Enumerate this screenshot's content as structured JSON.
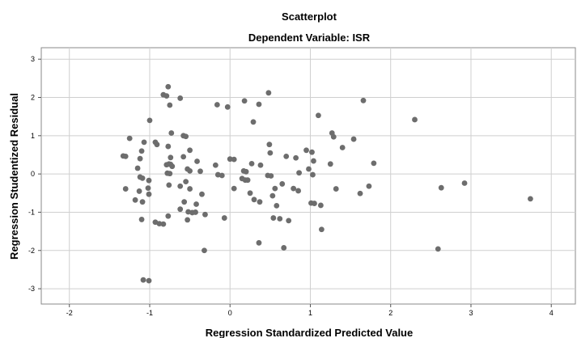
{
  "chart_data": {
    "type": "scatter",
    "title": "Scatterplot",
    "subtitle": "Dependent Variable: ISR",
    "xlabel": "Regression Standardized Predicted Value",
    "ylabel": "Regression Studentized Residual",
    "xlim": [
      -2.35,
      4.3
    ],
    "ylim": [
      -3.4,
      3.3
    ],
    "xticks": [
      -2,
      -1,
      0,
      1,
      2,
      3,
      4
    ],
    "yticks": [
      -3,
      -2,
      -1,
      0,
      1,
      2,
      3
    ],
    "xtick_labels": [
      "-2",
      "-1",
      "0",
      "1",
      "2",
      "3",
      "4"
    ],
    "ytick_labels": [
      "-3",
      "-2",
      "-1",
      "0",
      "1",
      "2",
      "3"
    ],
    "grid": true,
    "point_color": "#6d6d6d",
    "points": [
      {
        "x": -1.33,
        "y": 0.47
      },
      {
        "x": -1.3,
        "y": 0.46
      },
      {
        "x": -1.25,
        "y": 0.93
      },
      {
        "x": -1.3,
        "y": -0.39
      },
      {
        "x": -1.18,
        "y": -0.68
      },
      {
        "x": -1.15,
        "y": 0.15
      },
      {
        "x": -1.12,
        "y": -0.08
      },
      {
        "x": -1.09,
        "y": -0.11
      },
      {
        "x": -1.13,
        "y": -0.45
      },
      {
        "x": -1.12,
        "y": 0.4
      },
      {
        "x": -1.1,
        "y": 0.6
      },
      {
        "x": -1.07,
        "y": 0.83
      },
      {
        "x": -1.09,
        "y": -0.73
      },
      {
        "x": -1.1,
        "y": -1.19
      },
      {
        "x": -1.02,
        "y": -0.37
      },
      {
        "x": -1.01,
        "y": -0.17
      },
      {
        "x": -1.01,
        "y": -0.53
      },
      {
        "x": -1.0,
        "y": 1.4
      },
      {
        "x": -1.08,
        "y": -2.77
      },
      {
        "x": -1.01,
        "y": -2.79
      },
      {
        "x": -0.93,
        "y": 0.83
      },
      {
        "x": -0.91,
        "y": 0.77
      },
      {
        "x": -0.93,
        "y": -1.26
      },
      {
        "x": -0.88,
        "y": -1.3
      },
      {
        "x": -0.83,
        "y": -1.31
      },
      {
        "x": -0.83,
        "y": 2.07
      },
      {
        "x": -0.79,
        "y": 2.04
      },
      {
        "x": -0.77,
        "y": 2.28
      },
      {
        "x": -0.75,
        "y": 1.8
      },
      {
        "x": -0.73,
        "y": 1.07
      },
      {
        "x": -0.77,
        "y": 0.72
      },
      {
        "x": -0.74,
        "y": 0.43
      },
      {
        "x": -0.79,
        "y": 0.24
      },
      {
        "x": -0.76,
        "y": 0.26
      },
      {
        "x": -0.74,
        "y": 0.25
      },
      {
        "x": -0.72,
        "y": 0.2
      },
      {
        "x": -0.78,
        "y": 0.02
      },
      {
        "x": -0.75,
        "y": 0.01
      },
      {
        "x": -0.76,
        "y": -0.29
      },
      {
        "x": -0.77,
        "y": -1.1
      },
      {
        "x": -0.62,
        "y": 1.98
      },
      {
        "x": -0.58,
        "y": 1.0
      },
      {
        "x": -0.55,
        "y": 0.98
      },
      {
        "x": -0.58,
        "y": 0.45
      },
      {
        "x": -0.53,
        "y": 0.13
      },
      {
        "x": -0.5,
        "y": 0.08
      },
      {
        "x": -0.5,
        "y": 0.62
      },
      {
        "x": -0.55,
        "y": -0.2
      },
      {
        "x": -0.62,
        "y": -0.32
      },
      {
        "x": -0.5,
        "y": -0.39
      },
      {
        "x": -0.57,
        "y": -0.73
      },
      {
        "x": -0.62,
        "y": -0.92
      },
      {
        "x": -0.52,
        "y": -0.99
      },
      {
        "x": -0.47,
        "y": -1.01
      },
      {
        "x": -0.43,
        "y": -1.0
      },
      {
        "x": -0.53,
        "y": -1.2
      },
      {
        "x": -0.41,
        "y": 0.33
      },
      {
        "x": -0.37,
        "y": 0.07
      },
      {
        "x": -0.42,
        "y": -0.79
      },
      {
        "x": -0.35,
        "y": -0.53
      },
      {
        "x": -0.31,
        "y": -1.06
      },
      {
        "x": -0.32,
        "y": -2.0
      },
      {
        "x": -0.16,
        "y": 1.81
      },
      {
        "x": -0.18,
        "y": 0.23
      },
      {
        "x": -0.15,
        "y": -0.02
      },
      {
        "x": -0.1,
        "y": -0.04
      },
      {
        "x": -0.07,
        "y": -1.15
      },
      {
        "x": -0.03,
        "y": 1.75
      },
      {
        "x": 0.0,
        "y": 0.39
      },
      {
        "x": 0.05,
        "y": 0.38
      },
      {
        "x": 0.05,
        "y": -0.38
      },
      {
        "x": 0.15,
        "y": -0.12
      },
      {
        "x": 0.17,
        "y": 0.08
      },
      {
        "x": 0.18,
        "y": 1.91
      },
      {
        "x": 0.19,
        "y": -0.16
      },
      {
        "x": 0.2,
        "y": 0.06
      },
      {
        "x": 0.22,
        "y": -0.16
      },
      {
        "x": 0.25,
        "y": -0.5
      },
      {
        "x": 0.27,
        "y": 0.27
      },
      {
        "x": 0.29,
        "y": 1.36
      },
      {
        "x": 0.3,
        "y": -0.67
      },
      {
        "x": 0.36,
        "y": 1.82
      },
      {
        "x": 0.37,
        "y": -0.73
      },
      {
        "x": 0.38,
        "y": 0.23
      },
      {
        "x": 0.36,
        "y": -1.8
      },
      {
        "x": 0.48,
        "y": 2.12
      },
      {
        "x": 0.47,
        "y": -0.04
      },
      {
        "x": 0.49,
        "y": 0.77
      },
      {
        "x": 0.5,
        "y": 0.55
      },
      {
        "x": 0.51,
        "y": -0.05
      },
      {
        "x": 0.53,
        "y": -0.57
      },
      {
        "x": 0.54,
        "y": -1.15
      },
      {
        "x": 0.56,
        "y": -0.38
      },
      {
        "x": 0.58,
        "y": -0.83
      },
      {
        "x": 0.62,
        "y": -1.17
      },
      {
        "x": 0.65,
        "y": -0.26
      },
      {
        "x": 0.67,
        "y": -1.93
      },
      {
        "x": 0.7,
        "y": 0.46
      },
      {
        "x": 0.73,
        "y": -1.22
      },
      {
        "x": 0.79,
        "y": -0.38
      },
      {
        "x": 0.82,
        "y": 0.42
      },
      {
        "x": 0.85,
        "y": -0.44
      },
      {
        "x": 0.86,
        "y": 0.03
      },
      {
        "x": 0.95,
        "y": 0.62
      },
      {
        "x": 0.98,
        "y": 0.13
      },
      {
        "x": 1.01,
        "y": -0.76
      },
      {
        "x": 1.02,
        "y": 0.57
      },
      {
        "x": 1.03,
        "y": -0.02
      },
      {
        "x": 1.04,
        "y": 0.34
      },
      {
        "x": 1.05,
        "y": -0.77
      },
      {
        "x": 1.1,
        "y": 1.53
      },
      {
        "x": 1.13,
        "y": -0.82
      },
      {
        "x": 1.14,
        "y": -1.45
      },
      {
        "x": 1.25,
        "y": 0.26
      },
      {
        "x": 1.27,
        "y": 1.07
      },
      {
        "x": 1.29,
        "y": 0.97
      },
      {
        "x": 1.32,
        "y": -0.39
      },
      {
        "x": 1.4,
        "y": 0.69
      },
      {
        "x": 1.54,
        "y": 0.91
      },
      {
        "x": 1.62,
        "y": -0.51
      },
      {
        "x": 1.66,
        "y": 1.92
      },
      {
        "x": 1.73,
        "y": -0.32
      },
      {
        "x": 1.79,
        "y": 0.28
      },
      {
        "x": 2.3,
        "y": 1.42
      },
      {
        "x": 2.59,
        "y": -1.96
      },
      {
        "x": 2.63,
        "y": -0.36
      },
      {
        "x": 2.92,
        "y": -0.24
      },
      {
        "x": 3.74,
        "y": -0.65
      }
    ]
  }
}
